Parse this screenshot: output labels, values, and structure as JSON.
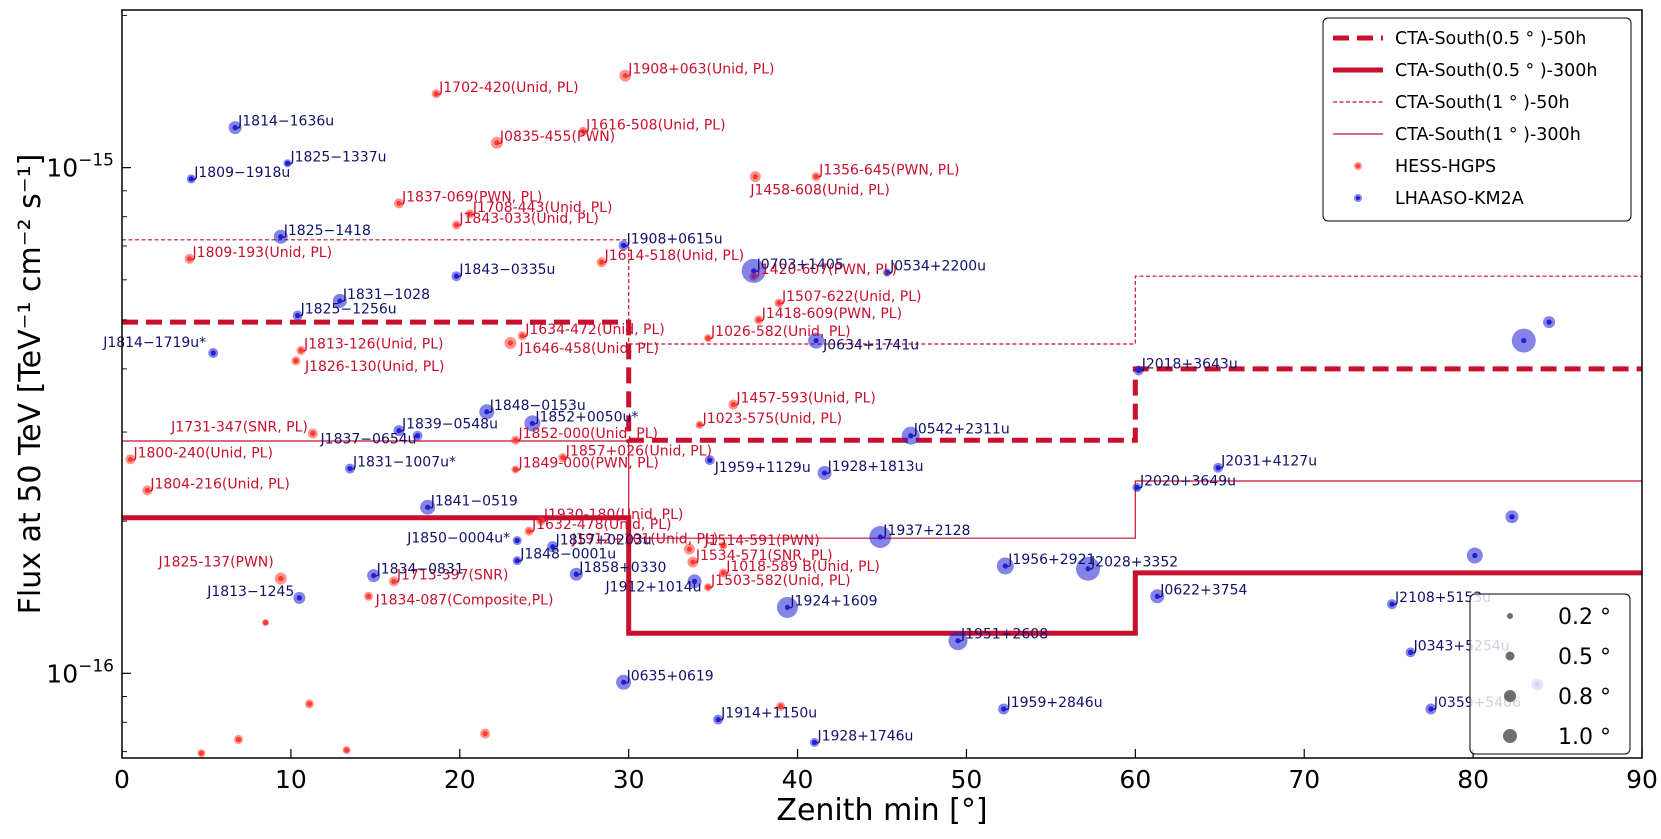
{
  "chart_data": {
    "type": "scatter",
    "title": "",
    "xlabel": "Zenith min [°]",
    "ylabel": "Flux at 50 TeV [TeV⁻¹ cm⁻² s⁻¹]",
    "xlim": [
      0,
      90
    ],
    "ylim": [
      6.8e-17,
      2.05e-15
    ],
    "yscale": "log",
    "x_ticks": [
      0,
      10,
      20,
      30,
      40,
      50,
      60,
      70,
      80,
      90
    ],
    "y_ticks": [
      {
        "value": 1e-15,
        "label": "10−15"
      },
      {
        "value": 1e-16,
        "label": "10−16"
      }
    ],
    "colors": {
      "cta": "#c8102e",
      "hess": "#ff3b30",
      "lhaaso": "#1f1fd6",
      "lhaaso_label": "#11116b"
    },
    "legend": {
      "position": "top-right",
      "entries": [
        {
          "label": "CTA-South(0.5 ° )-50h",
          "style": "thick-dashed"
        },
        {
          "label": "CTA-South(0.5 ° )-300h",
          "style": "thick-solid"
        },
        {
          "label": "CTA-South(1 ° )-50h",
          "style": "thin-dashed"
        },
        {
          "label": "CTA-South(1 ° )-300h",
          "style": "thin-solid"
        },
        {
          "label": "HESS-HGPS",
          "style": "red-dot"
        },
        {
          "label": "LHAASO-KM2A",
          "style": "blue-dot"
        }
      ]
    },
    "size_legend": {
      "position": "bottom-right",
      "entries": [
        {
          "label": "0.2 °",
          "ext": 0.2
        },
        {
          "label": "0.5 °",
          "ext": 0.5
        },
        {
          "label": "0.8 °",
          "ext": 0.8
        },
        {
          "label": "1.0 °",
          "ext": 1.0
        }
      ]
    },
    "sensitivity_curves": [
      {
        "name": "CTA-South(0.5°)-50h",
        "style": "thick-dashed",
        "points": [
          [
            0,
            4.95e-16
          ],
          [
            30,
            4.95e-16
          ],
          [
            30,
            2.89e-16
          ],
          [
            60,
            2.89e-16
          ],
          [
            60,
            4e-16
          ],
          [
            90,
            4e-16
          ]
        ]
      },
      {
        "name": "CTA-South(0.5°)-300h",
        "style": "thick-solid",
        "points": [
          [
            0,
            2.03e-16
          ],
          [
            30,
            2.03e-16
          ],
          [
            30,
            1.2e-16
          ],
          [
            60,
            1.2e-16
          ],
          [
            60,
            1.58e-16
          ],
          [
            90,
            1.58e-16
          ]
        ]
      },
      {
        "name": "CTA-South(1°)-50h",
        "style": "thin-dashed",
        "points": [
          [
            0,
            7.2e-16
          ],
          [
            30,
            7.2e-16
          ],
          [
            30,
            4.48e-16
          ],
          [
            60,
            4.48e-16
          ],
          [
            60,
            6.1e-16
          ],
          [
            90,
            6.1e-16
          ]
        ]
      },
      {
        "name": "CTA-South(1°)-300h",
        "style": "thin-solid",
        "points": [
          [
            0,
            2.88e-16
          ],
          [
            30,
            2.88e-16
          ],
          [
            30,
            1.85e-16
          ],
          [
            60,
            1.85e-16
          ],
          [
            60,
            2.4e-16
          ],
          [
            90,
            2.4e-16
          ]
        ]
      }
    ],
    "series": [
      {
        "name": "HESS-HGPS",
        "points": [
          {
            "x": 29.8,
            "y": 1.52e-15,
            "ext": 0.3,
            "label": "J1908+063(Unid, PL)"
          },
          {
            "x": 18.6,
            "y": 1.4e-15,
            "ext": 0.15,
            "label": "J1702-420(Unid, PL)"
          },
          {
            "x": 27.3,
            "y": 1.18e-15,
            "ext": 0.15,
            "label": "J1616-508(Unid, PL)"
          },
          {
            "x": 22.2,
            "y": 1.12e-15,
            "ext": 0.3,
            "label": "J0835-455(PWN)"
          },
          {
            "x": 37.5,
            "y": 9.6e-16,
            "ext": 0.25,
            "label": "J1458-608(Unid, PL)",
            "dx": -8,
            "dy": 20
          },
          {
            "x": 41.1,
            "y": 9.6e-16,
            "ext": 0.15,
            "label": "J1356-645(PWN, PL)"
          },
          {
            "x": 16.4,
            "y": 8.5e-16,
            "ext": 0.2,
            "label": "J1837-069(PWN, PL)"
          },
          {
            "x": 20.6,
            "y": 8.1e-16,
            "ext": 0.15,
            "label": "J1708-443(Unid, PL)"
          },
          {
            "x": 19.8,
            "y": 7.7e-16,
            "ext": 0.15,
            "label": "J1843-033(Unid, PL)"
          },
          {
            "x": 4.0,
            "y": 6.6e-16,
            "ext": 0.2,
            "label": "J1809-193(Unid, PL)"
          },
          {
            "x": 28.4,
            "y": 6.5e-16,
            "ext": 0.2,
            "label": "J1614-518(Unid, PL)"
          },
          {
            "x": 37.4,
            "y": 6.1e-16,
            "ext": 0.15,
            "label": "J1420-607(PWN, PL)"
          },
          {
            "x": 38.9,
            "y": 5.4e-16,
            "ext": 0.15,
            "label": "J1507-622(Unid, PL)"
          },
          {
            "x": 37.7,
            "y": 5e-16,
            "ext": 0.15,
            "label": "J1418-609(PWN, PL)"
          },
          {
            "x": 23.7,
            "y": 4.65e-16,
            "ext": 0.15,
            "label": "J1634-472(Unid, PL)"
          },
          {
            "x": 23.0,
            "y": 4.5e-16,
            "ext": 0.3,
            "label": "J1646-458(Unid, PL)",
            "dx": 6,
            "dy": 12
          },
          {
            "x": 34.7,
            "y": 4.6e-16,
            "ext": 0.1,
            "label": "J1026-582(Unid, PL)"
          },
          {
            "x": 10.6,
            "y": 4.35e-16,
            "ext": 0.15,
            "label": "J1813-126(Unid, PL)"
          },
          {
            "x": 10.3,
            "y": 4.15e-16,
            "ext": 0.15,
            "label": "J1826-130(Unid, PL)",
            "dx": 6,
            "dy": 12
          },
          {
            "x": 36.2,
            "y": 3.4e-16,
            "ext": 0.2,
            "label": "J1457-593(Unid, PL)"
          },
          {
            "x": 34.2,
            "y": 3.1e-16,
            "ext": 0.1,
            "label": "J1023-575(Unid, PL)"
          },
          {
            "x": 11.3,
            "y": 2.98e-16,
            "ext": 0.2,
            "label": "J1731-347(SNR, PL)",
            "side": "left"
          },
          {
            "x": 23.3,
            "y": 2.89e-16,
            "ext": 0.15,
            "label": "J1852-000(Unid, PL)"
          },
          {
            "x": 26.1,
            "y": 2.67e-16,
            "ext": 0.15,
            "label": "J1857+026(Unid, PL)"
          },
          {
            "x": 0.5,
            "y": 2.65e-16,
            "ext": 0.2,
            "label": "J1800-240(Unid, PL)"
          },
          {
            "x": 23.3,
            "y": 2.53e-16,
            "ext": 0.1,
            "label": "J1849-000(PWN, PL)"
          },
          {
            "x": 1.5,
            "y": 2.3e-16,
            "ext": 0.2,
            "label": "J1804-216(Unid, PL)"
          },
          {
            "x": 24.8,
            "y": 2e-16,
            "ext": 0.15,
            "label": "J1930-180(Unid, PL)"
          },
          {
            "x": 24.1,
            "y": 1.91e-16,
            "ext": 0.15,
            "label": "J1632-478(Unid, PL)"
          },
          {
            "x": 35.6,
            "y": 1.79e-16,
            "ext": 0.1,
            "label": "J1912+101(Unid, PL)",
            "side": "left"
          },
          {
            "x": 33.6,
            "y": 1.76e-16,
            "ext": 0.25,
            "label": "J1514-591(PWN)",
            "dx": 12,
            "dy": -2
          },
          {
            "x": 33.8,
            "y": 1.66e-16,
            "ext": 0.25,
            "label": "J1534-571(SNR, PL)"
          },
          {
            "x": 35.6,
            "y": 1.58e-16,
            "ext": 0.15,
            "label": "J1018-589 B(Unid, PL)"
          },
          {
            "x": 9.4,
            "y": 1.54e-16,
            "ext": 0.3,
            "label": "J1825-137(PWN)",
            "side": "left",
            "dx": -2,
            "dy": -10
          },
          {
            "x": 16.1,
            "y": 1.52e-16,
            "ext": 0.2,
            "label": "J1713-397(SNR)"
          },
          {
            "x": 34.7,
            "y": 1.48e-16,
            "ext": 0.1,
            "label": "J1503-582(Unid, PL)"
          },
          {
            "x": 14.6,
            "y": 1.42e-16,
            "ext": 0.15,
            "label": "J1834-087(Composite,PL)",
            "dx": 4,
            "dy": 10
          },
          {
            "x": 8.5,
            "y": 1.26e-16,
            "ext": 0.05,
            "label": ""
          },
          {
            "x": 39.0,
            "y": 8.6e-17,
            "ext": 0.15,
            "label": ""
          },
          {
            "x": 11.1,
            "y": 8.7e-17,
            "ext": 0.15,
            "label": ""
          },
          {
            "x": 21.5,
            "y": 7.6e-17,
            "ext": 0.2,
            "label": ""
          },
          {
            "x": 6.9,
            "y": 7.4e-17,
            "ext": 0.15,
            "label": ""
          },
          {
            "x": 4.7,
            "y": 6.95e-17,
            "ext": 0.1,
            "label": ""
          },
          {
            "x": 13.3,
            "y": 7.05e-17,
            "ext": 0.1,
            "label": ""
          }
        ]
      },
      {
        "name": "LHAASO-KM2A",
        "points": [
          {
            "x": 6.7,
            "y": 1.2e-15,
            "ext": 0.35,
            "label": "J1814−1636u"
          },
          {
            "x": 4.1,
            "y": 9.5e-16,
            "ext": 0.15,
            "label": "J1809−1918u"
          },
          {
            "x": 9.8,
            "y": 1.02e-15,
            "ext": 0.1,
            "label": "J1825−1337u"
          },
          {
            "x": 9.4,
            "y": 7.3e-16,
            "ext": 0.4,
            "label": "J1825−1418"
          },
          {
            "x": 29.7,
            "y": 7.02e-16,
            "ext": 0.2,
            "label": "J1908+0615u"
          },
          {
            "x": 19.8,
            "y": 6.1e-16,
            "ext": 0.2,
            "label": "J1843−0335u"
          },
          {
            "x": 37.4,
            "y": 6.25e-16,
            "ext": 0.9,
            "label": "J0703+1405"
          },
          {
            "x": 45.3,
            "y": 6.2e-16,
            "ext": 0.1,
            "label": "J0534+2200u"
          },
          {
            "x": 12.9,
            "y": 5.45e-16,
            "ext": 0.4,
            "label": "J1831−1028"
          },
          {
            "x": 10.4,
            "y": 5.1e-16,
            "ext": 0.2,
            "label": "J1825−1256u"
          },
          {
            "x": 41.1,
            "y": 4.55e-16,
            "ext": 0.5,
            "label": "J0634+1741u",
            "dx": 4,
            "dy": 11
          },
          {
            "x": 5.4,
            "y": 4.3e-16,
            "ext": 0.2,
            "label": "J1814−1719u*",
            "side": "left",
            "dx": -2,
            "dy": -4
          },
          {
            "x": 60.2,
            "y": 3.97e-16,
            "ext": 0.2,
            "label": "J2018+3643u"
          },
          {
            "x": 21.6,
            "y": 3.29e-16,
            "ext": 0.45,
            "label": "J1848−0153u"
          },
          {
            "x": 24.3,
            "y": 3.12e-16,
            "ext": 0.5,
            "label": "J1852+0050u*"
          },
          {
            "x": 16.4,
            "y": 3.02e-16,
            "ext": 0.25,
            "label": "J1839−0548u"
          },
          {
            "x": 17.5,
            "y": 2.95e-16,
            "ext": 0.2,
            "label": "J1837−0654u",
            "side": "left",
            "dx": 4,
            "dy": 10
          },
          {
            "x": 46.7,
            "y": 2.95e-16,
            "ext": 0.6,
            "label": "J0542+2311u"
          },
          {
            "x": 34.8,
            "y": 2.64e-16,
            "ext": 0.2,
            "label": "J1959+1129u",
            "dx": 2,
            "dy": 14
          },
          {
            "x": 13.5,
            "y": 2.54e-16,
            "ext": 0.2,
            "label": "J1831−1007u*"
          },
          {
            "x": 41.6,
            "y": 2.49e-16,
            "ext": 0.4,
            "label": "J1928+1813u"
          },
          {
            "x": 64.9,
            "y": 2.55e-16,
            "ext": 0.2,
            "label": "J2031+4127u"
          },
          {
            "x": 60.1,
            "y": 2.33e-16,
            "ext": 0.15,
            "label": "J2020+3649u"
          },
          {
            "x": 18.1,
            "y": 2.13e-16,
            "ext": 0.45,
            "label": "J1841−0519"
          },
          {
            "x": 82.3,
            "y": 2.04e-16,
            "ext": 0.35,
            "label": ""
          },
          {
            "x": 44.9,
            "y": 1.86e-16,
            "ext": 0.8,
            "label": "J1937+2128"
          },
          {
            "x": 23.4,
            "y": 1.83e-16,
            "ext": 0.15,
            "label": "J1850−0004u*",
            "side": "left",
            "dx": -2,
            "dy": 4
          },
          {
            "x": 25.5,
            "y": 1.78e-16,
            "ext": 0.25,
            "label": "J1857+0203u"
          },
          {
            "x": 23.4,
            "y": 1.67e-16,
            "ext": 0.15,
            "label": "J1848−0001u"
          },
          {
            "x": 80.1,
            "y": 1.71e-16,
            "ext": 0.5,
            "label": ""
          },
          {
            "x": 52.3,
            "y": 1.63e-16,
            "ext": 0.55,
            "label": "J1956+2921"
          },
          {
            "x": 57.2,
            "y": 1.61e-16,
            "ext": 0.9,
            "label": "J2028+3352"
          },
          {
            "x": 14.9,
            "y": 1.56e-16,
            "ext": 0.35,
            "label": "J1834−0831"
          },
          {
            "x": 26.9,
            "y": 1.57e-16,
            "ext": 0.35,
            "label": "J1858+0330"
          },
          {
            "x": 33.9,
            "y": 1.52e-16,
            "ext": 0.4,
            "label": "J1912+1014u",
            "side": "left",
            "dx": 12,
            "dy": 12
          },
          {
            "x": 10.5,
            "y": 1.41e-16,
            "ext": 0.3,
            "label": "J1813−1245",
            "side": "left"
          },
          {
            "x": 61.3,
            "y": 1.42e-16,
            "ext": 0.4,
            "label": "J0622+3754"
          },
          {
            "x": 75.2,
            "y": 1.37e-16,
            "ext": 0.2,
            "label": "J2108+5153u"
          },
          {
            "x": 39.4,
            "y": 1.35e-16,
            "ext": 0.75,
            "label": "J1924+1609"
          },
          {
            "x": 49.5,
            "y": 1.16e-16,
            "ext": 0.65,
            "label": "J1951+2608"
          },
          {
            "x": 76.3,
            "y": 1.1e-16,
            "ext": 0.2,
            "label": "J0343+5254u"
          },
          {
            "x": 29.7,
            "y": 9.6e-17,
            "ext": 0.45,
            "label": "J0635+0619"
          },
          {
            "x": 83.8,
            "y": 9.5e-17,
            "ext": 0.3,
            "label": ""
          },
          {
            "x": 77.5,
            "y": 8.5e-17,
            "ext": 0.25,
            "label": "J0359+5406"
          },
          {
            "x": 52.2,
            "y": 8.5e-17,
            "ext": 0.25,
            "label": "J1959+2846u"
          },
          {
            "x": 35.3,
            "y": 8.1e-17,
            "ext": 0.2,
            "label": "J1914+1150u"
          },
          {
            "x": 41.0,
            "y": 7.3e-17,
            "ext": 0.15,
            "label": "J1928+1746u"
          },
          {
            "x": 83.0,
            "y": 4.55e-16,
            "ext": 0.9,
            "label": ""
          },
          {
            "x": 84.5,
            "y": 4.95e-16,
            "ext": 0.3,
            "label": ""
          }
        ]
      }
    ]
  }
}
